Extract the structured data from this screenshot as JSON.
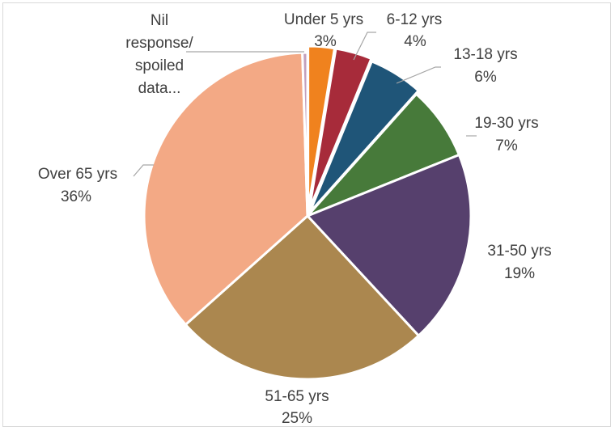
{
  "chart_data": {
    "type": "pie",
    "title": "",
    "slices": [
      {
        "label": "Under 5 yrs",
        "percent_label": "3%",
        "value": 2.6,
        "color": "#f0821e"
      },
      {
        "label": "6-12 yrs",
        "percent_label": "4%",
        "value": 3.6,
        "color": "#a72b3a"
      },
      {
        "label": "13-18 yrs",
        "percent_label": "6%",
        "value": 5.4,
        "color": "#1f5578"
      },
      {
        "label": "19-30 yrs",
        "percent_label": "7%",
        "value": 7.3,
        "color": "#477a3a"
      },
      {
        "label": "31-50 yrs",
        "percent_label": "19%",
        "value": 19.2,
        "color": "#56406d"
      },
      {
        "label": "51-65 yrs",
        "percent_label": "25%",
        "value": 25.3,
        "color": "#ab874f"
      },
      {
        "label": "Over 65 yrs",
        "percent_label": "36%",
        "value": 36.1,
        "color": "#f3a985"
      },
      {
        "label": "Nil response/ spoiled data...",
        "label_lines": [
          "Nil",
          "response/",
          "spoiled",
          "data..."
        ],
        "percent_label": "",
        "value": 0.5,
        "color": "#c3a0bc"
      }
    ],
    "legend": "none",
    "data_labels": "outside with leader lines"
  }
}
